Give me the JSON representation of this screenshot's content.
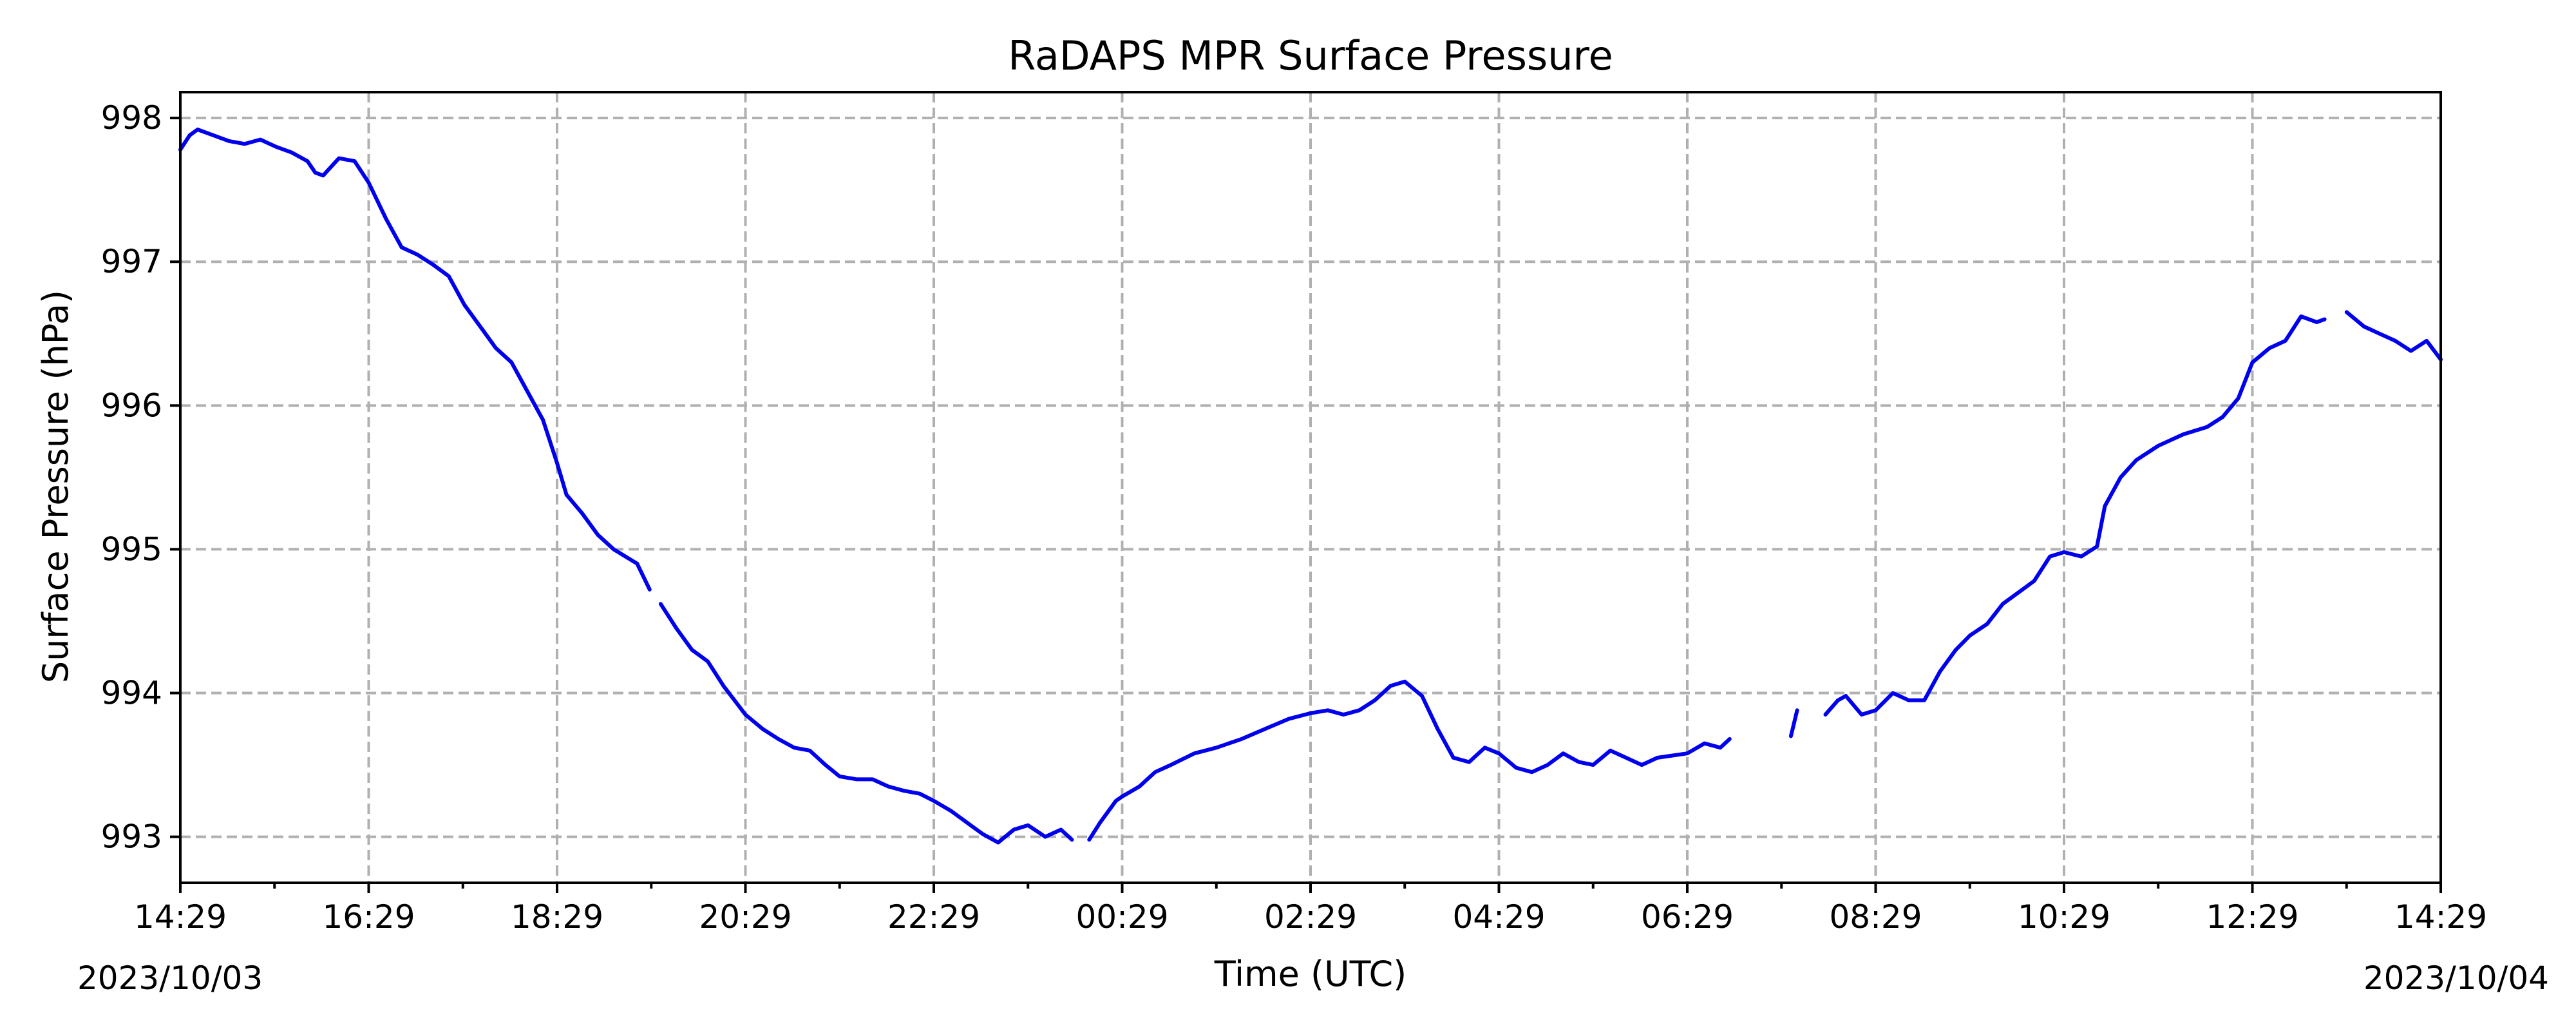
{
  "chart_data": {
    "type": "line",
    "title": "RaDAPS MPR Surface Pressure",
    "xlabel": "Time (UTC)",
    "ylabel": "Surface Pressure (hPa)",
    "xlim": [
      "2023-10-03 14:29",
      "2023-10-04 14:29"
    ],
    "ylim": [
      992.68,
      998.18
    ],
    "grid": true,
    "legend": "none",
    "x_ticks": [
      "14:29",
      "16:29",
      "18:29",
      "20:29",
      "22:29",
      "00:29",
      "02:29",
      "04:29",
      "06:29",
      "08:29",
      "10:29",
      "12:29",
      "14:29"
    ],
    "x_date_labels": {
      "start": "2023/10/03",
      "end": "2023/10/04"
    },
    "y_ticks": [
      993,
      994,
      995,
      996,
      997,
      998
    ],
    "series": [
      {
        "color": "#0000ee",
        "segments": [
          [
            [
              "2023-10-03 14:29",
              997.78
            ],
            [
              "2023-10-03 14:35",
              997.88
            ],
            [
              "2023-10-03 14:40",
              997.92
            ],
            [
              "2023-10-03 14:50",
              997.88
            ],
            [
              "2023-10-03 15:00",
              997.84
            ],
            [
              "2023-10-03 15:10",
              997.82
            ],
            [
              "2023-10-03 15:20",
              997.85
            ],
            [
              "2023-10-03 15:30",
              997.8
            ],
            [
              "2023-10-03 15:40",
              997.76
            ],
            [
              "2023-10-03 15:50",
              997.7
            ],
            [
              "2023-10-03 15:55",
              997.62
            ],
            [
              "2023-10-03 16:00",
              997.6
            ],
            [
              "2023-10-03 16:10",
              997.72
            ],
            [
              "2023-10-03 16:20",
              997.7
            ],
            [
              "2023-10-03 16:29",
              997.55
            ],
            [
              "2023-10-03 16:40",
              997.3
            ],
            [
              "2023-10-03 16:50",
              997.1
            ],
            [
              "2023-10-03 17:00",
              997.05
            ],
            [
              "2023-10-03 17:10",
              996.98
            ],
            [
              "2023-10-03 17:20",
              996.9
            ],
            [
              "2023-10-03 17:30",
              996.7
            ],
            [
              "2023-10-03 17:40",
              996.55
            ],
            [
              "2023-10-03 17:50",
              996.4
            ],
            [
              "2023-10-03 18:00",
              996.3
            ],
            [
              "2023-10-03 18:10",
              996.1
            ],
            [
              "2023-10-03 18:20",
              995.9
            ],
            [
              "2023-10-03 18:29",
              995.6
            ],
            [
              "2023-10-03 18:35",
              995.38
            ],
            [
              "2023-10-03 18:45",
              995.25
            ],
            [
              "2023-10-03 18:55",
              995.1
            ],
            [
              "2023-10-03 19:05",
              995.0
            ],
            [
              "2023-10-03 19:20",
              994.9
            ],
            [
              "2023-10-03 19:28",
              994.72
            ]
          ],
          [
            [
              "2023-10-03 19:35",
              994.62
            ],
            [
              "2023-10-03 19:45",
              994.45
            ],
            [
              "2023-10-03 19:55",
              994.3
            ],
            [
              "2023-10-03 20:05",
              994.22
            ],
            [
              "2023-10-03 20:15",
              994.05
            ],
            [
              "2023-10-03 20:29",
              993.85
            ],
            [
              "2023-10-03 20:40",
              993.75
            ],
            [
              "2023-10-03 20:50",
              993.68
            ],
            [
              "2023-10-03 21:00",
              993.62
            ],
            [
              "2023-10-03 21:10",
              993.6
            ],
            [
              "2023-10-03 21:20",
              993.5
            ],
            [
              "2023-10-03 21:29",
              993.42
            ],
            [
              "2023-10-03 21:40",
              993.4
            ],
            [
              "2023-10-03 21:50",
              993.4
            ],
            [
              "2023-10-03 22:00",
              993.35
            ],
            [
              "2023-10-03 22:10",
              993.32
            ],
            [
              "2023-10-03 22:20",
              993.3
            ],
            [
              "2023-10-03 22:29",
              993.25
            ],
            [
              "2023-10-03 22:40",
              993.18
            ],
            [
              "2023-10-03 22:50",
              993.1
            ],
            [
              "2023-10-03 23:00",
              993.02
            ],
            [
              "2023-10-03 23:10",
              992.96
            ],
            [
              "2023-10-03 23:20",
              993.05
            ],
            [
              "2023-10-03 23:29",
              993.08
            ],
            [
              "2023-10-03 23:40",
              993.0
            ],
            [
              "2023-10-03 23:50",
              993.05
            ],
            [
              "2023-10-03 23:57",
              992.98
            ]
          ],
          [
            [
              "2023-10-04 00:08",
              992.98
            ],
            [
              "2023-10-04 00:15",
              993.1
            ],
            [
              "2023-10-04 00:25",
              993.25
            ],
            [
              "2023-10-04 00:29",
              993.28
            ],
            [
              "2023-10-04 00:40",
              993.35
            ],
            [
              "2023-10-04 00:50",
              993.45
            ],
            [
              "2023-10-04 01:00",
              993.5
            ],
            [
              "2023-10-04 01:15",
              993.58
            ],
            [
              "2023-10-04 01:29",
              993.62
            ],
            [
              "2023-10-04 01:45",
              993.68
            ],
            [
              "2023-10-04 02:00",
              993.75
            ],
            [
              "2023-10-04 02:15",
              993.82
            ],
            [
              "2023-10-04 02:29",
              993.86
            ],
            [
              "2023-10-04 02:40",
              993.88
            ],
            [
              "2023-10-04 02:50",
              993.85
            ],
            [
              "2023-10-04 03:00",
              993.88
            ],
            [
              "2023-10-04 03:10",
              993.95
            ],
            [
              "2023-10-04 03:20",
              994.05
            ],
            [
              "2023-10-04 03:29",
              994.08
            ],
            [
              "2023-10-04 03:40",
              993.98
            ],
            [
              "2023-10-04 03:50",
              993.75
            ],
            [
              "2023-10-04 04:00",
              993.55
            ],
            [
              "2023-10-04 04:10",
              993.52
            ],
            [
              "2023-10-04 04:20",
              993.62
            ],
            [
              "2023-10-04 04:29",
              993.58
            ],
            [
              "2023-10-04 04:40",
              993.48
            ],
            [
              "2023-10-04 04:50",
              993.45
            ],
            [
              "2023-10-04 05:00",
              993.5
            ],
            [
              "2023-10-04 05:10",
              993.58
            ],
            [
              "2023-10-04 05:20",
              993.52
            ],
            [
              "2023-10-04 05:29",
              993.5
            ],
            [
              "2023-10-04 05:40",
              993.6
            ],
            [
              "2023-10-04 05:50",
              993.55
            ],
            [
              "2023-10-04 06:00",
              993.5
            ],
            [
              "2023-10-04 06:10",
              993.55
            ],
            [
              "2023-10-04 06:29",
              993.58
            ],
            [
              "2023-10-04 06:40",
              993.65
            ],
            [
              "2023-10-04 06:50",
              993.62
            ],
            [
              "2023-10-04 06:56",
              993.68
            ]
          ],
          [
            [
              "2023-10-04 07:35",
              993.7
            ],
            [
              "2023-10-04 07:39",
              993.88
            ]
          ],
          [
            [
              "2023-10-04 07:57",
              993.85
            ],
            [
              "2023-10-04 08:05",
              993.95
            ],
            [
              "2023-10-04 08:10",
              993.98
            ],
            [
              "2023-10-04 08:20",
              993.85
            ],
            [
              "2023-10-04 08:29",
              993.88
            ],
            [
              "2023-10-04 08:40",
              994.0
            ],
            [
              "2023-10-04 08:50",
              993.95
            ],
            [
              "2023-10-04 09:00",
              993.95
            ],
            [
              "2023-10-04 09:10",
              994.15
            ],
            [
              "2023-10-04 09:20",
              994.3
            ],
            [
              "2023-10-04 09:29",
              994.4
            ],
            [
              "2023-10-04 09:40",
              994.48
            ],
            [
              "2023-10-04 09:50",
              994.62
            ],
            [
              "2023-10-04 10:00",
              994.7
            ],
            [
              "2023-10-04 10:10",
              994.78
            ],
            [
              "2023-10-04 10:20",
              994.95
            ],
            [
              "2023-10-04 10:29",
              994.98
            ],
            [
              "2023-10-04 10:40",
              994.95
            ],
            [
              "2023-10-04 10:50",
              995.02
            ],
            [
              "2023-10-04 10:55",
              995.3
            ],
            [
              "2023-10-04 11:05",
              995.5
            ],
            [
              "2023-10-04 11:15",
              995.62
            ],
            [
              "2023-10-04 11:29",
              995.72
            ],
            [
              "2023-10-04 11:45",
              995.8
            ],
            [
              "2023-10-04 12:00",
              995.85
            ],
            [
              "2023-10-04 12:10",
              995.92
            ],
            [
              "2023-10-04 12:20",
              996.05
            ],
            [
              "2023-10-04 12:29",
              996.3
            ],
            [
              "2023-10-04 12:40",
              996.4
            ],
            [
              "2023-10-04 12:50",
              996.45
            ],
            [
              "2023-10-04 13:00",
              996.62
            ],
            [
              "2023-10-04 13:10",
              996.58
            ],
            [
              "2023-10-04 13:15",
              996.6
            ]
          ],
          [
            [
              "2023-10-04 13:29",
              996.65
            ],
            [
              "2023-10-04 13:40",
              996.55
            ],
            [
              "2023-10-04 13:50",
              996.5
            ],
            [
              "2023-10-04 14:00",
              996.45
            ],
            [
              "2023-10-04 14:10",
              996.38
            ],
            [
              "2023-10-04 14:20",
              996.45
            ],
            [
              "2023-10-04 14:29",
              996.32
            ]
          ]
        ]
      }
    ]
  }
}
